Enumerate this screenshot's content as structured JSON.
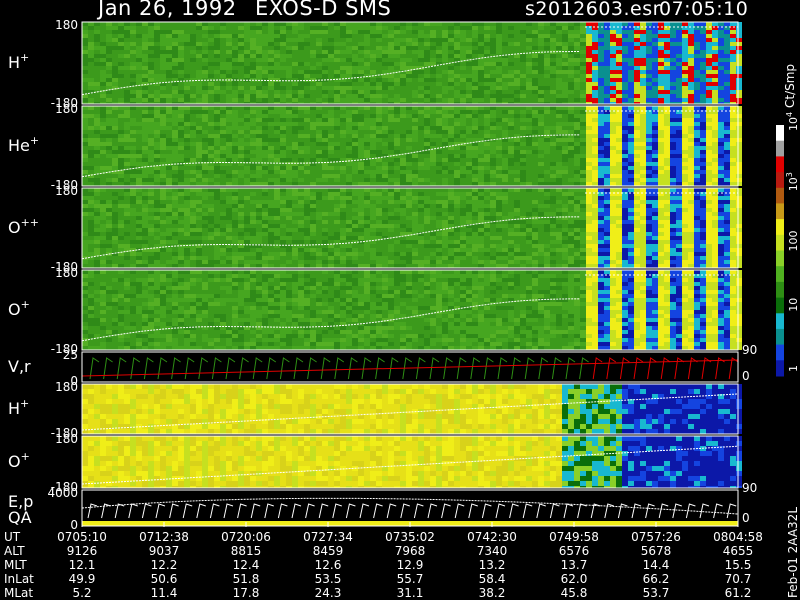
{
  "header": {
    "date": "Jan 26, 1992",
    "instrument": "EXOS-D SMS",
    "file": "s2012603.esr",
    "time": "07:05:10"
  },
  "chart_data": {
    "type": "heatmap",
    "title": "Jan 26, 1992   EXOS-D SMS",
    "colorbar": {
      "label": "Ct/Smp",
      "scale": "log",
      "tick_labels": [
        "1",
        "10",
        "100",
        "10^3",
        "10^4"
      ],
      "colors": [
        "#0c18a8",
        "#1444e0",
        "#0a9090",
        "#18b8d0",
        "#0a6e0a",
        "#2e8e14",
        "#50b020",
        "#8ad028",
        "#c6e020",
        "#f0ee18",
        "#c89a18",
        "#b05a10",
        "#b81a10",
        "#e00000",
        "#a0a0a0",
        "#ffffff"
      ]
    },
    "panels": [
      {
        "name": "H+",
        "label": "H",
        "sup": "+",
        "ylim": [
          -180,
          180
        ],
        "y_ticks": [
          "180",
          "-180"
        ],
        "pattern": "spin"
      },
      {
        "name": "He+",
        "label": "He",
        "sup": "+",
        "ylim": [
          -180,
          180
        ],
        "y_ticks": [
          "180",
          "-180"
        ],
        "pattern": "spin"
      },
      {
        "name": "O++",
        "label": "O",
        "sup": "++",
        "ylim": [
          -180,
          180
        ],
        "y_ticks": [
          "180",
          "-180"
        ],
        "pattern": "spin"
      },
      {
        "name": "O+",
        "label": "O",
        "sup": "+",
        "ylim": [
          -180,
          180
        ],
        "y_ticks": [
          "180",
          "-180"
        ],
        "pattern": "spin"
      },
      {
        "name": "V,r",
        "label": "V,r",
        "sup": "",
        "ylim": [
          0,
          25
        ],
        "y_ticks": [
          "25",
          "0"
        ],
        "right_ticks": [
          "90",
          "0"
        ],
        "pattern": "line"
      },
      {
        "name": "H+ (2)",
        "label": "H",
        "sup": "+",
        "ylim": [
          -180,
          180
        ],
        "y_ticks": [
          "180",
          "-180"
        ],
        "pattern": "low"
      },
      {
        "name": "O+ (2)",
        "label": "O",
        "sup": "+",
        "ylim": [
          -180,
          180
        ],
        "y_ticks": [
          "180",
          "-180"
        ],
        "pattern": "low"
      },
      {
        "name": "E,p QA",
        "label": "E,p",
        "label2": "QA",
        "sup": "",
        "ylim": [
          0,
          4000
        ],
        "y_ticks": [
          "4000",
          "0"
        ],
        "right_ticks": [
          "90",
          "0"
        ],
        "pattern": "ep"
      }
    ],
    "x_axis": {
      "label": "UT",
      "ticks": [
        "0705:10",
        "0712:38",
        "0720:06",
        "0727:34",
        "0735:02",
        "0742:30",
        "0749:58",
        "0757:26",
        "0804:58"
      ]
    },
    "ephemeris": [
      {
        "label": "ALT",
        "values": [
          "9126",
          "9037",
          "8815",
          "8459",
          "7968",
          "7340",
          "6576",
          "5678",
          "4655"
        ]
      },
      {
        "label": "MLT",
        "values": [
          "12.1",
          "12.2",
          "12.4",
          "12.6",
          "12.9",
          "13.2",
          "13.7",
          "14.4",
          "15.5"
        ]
      },
      {
        "label": "InLat",
        "values": [
          "49.9",
          "50.6",
          "51.8",
          "53.5",
          "55.7",
          "58.4",
          "62.0",
          "66.2",
          "70.7"
        ]
      },
      {
        "label": "MLat",
        "values": [
          "5.2",
          "11.4",
          "17.8",
          "24.3",
          "31.1",
          "38.2",
          "45.8",
          "53.7",
          "61.2"
        ]
      }
    ],
    "side_label": "Feb-01 2AA32L"
  }
}
